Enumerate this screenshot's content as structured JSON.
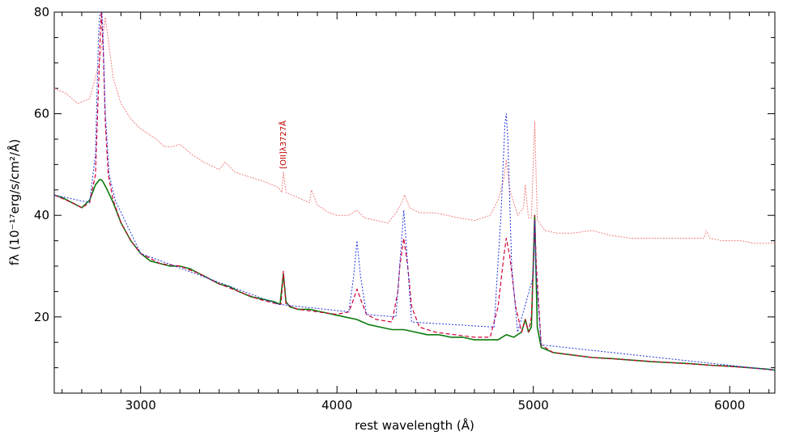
{
  "chart_data": {
    "type": "line",
    "xlabel": "rest wavelength (Å)",
    "ylabel": "fλ (10⁻¹⁷erg/s/cm²/Å)",
    "xlim": [
      2560,
      6230
    ],
    "ylim": [
      5,
      80
    ],
    "x_ticks": [
      3000,
      4000,
      5000,
      6000
    ],
    "y_ticks": [
      20,
      40,
      60,
      80
    ],
    "annotations": [
      {
        "text": "[OII]λ3727Å",
        "x": 3727,
        "y": 48.5
      }
    ],
    "grid": false,
    "colors": {
      "observed": "#0a7a0a",
      "model": "#d0003a",
      "components": "#2233dd",
      "comparison": "#f08080",
      "annotation": "#c00000"
    },
    "series": [
      {
        "key": "comparison",
        "x": [
          2560,
          2620,
          2680,
          2740,
          2790,
          2820,
          2860,
          2900,
          2950,
          3000,
          3080,
          3120,
          3160,
          3200,
          3260,
          3320,
          3400,
          3430,
          3480,
          3560,
          3640,
          3700,
          3720,
          3727,
          3740,
          3800,
          3860,
          3870,
          3900,
          3960,
          4000,
          4060,
          4100,
          4140,
          4200,
          4260,
          4300,
          4330,
          4345,
          4370,
          4420,
          4500,
          4560,
          4620,
          4700,
          4780,
          4820,
          4850,
          4862,
          4880,
          4920,
          4950,
          4959,
          4975,
          4990,
          5007,
          5020,
          5060,
          5120,
          5200,
          5300,
          5400,
          5500,
          5600,
          5700,
          5800,
          5870,
          5880,
          5900,
          5960,
          6000,
          6060,
          6120,
          6180,
          6230
        ],
        "y": [
          65,
          64,
          62,
          63,
          70,
          79,
          67,
          62,
          59,
          57,
          55,
          53.5,
          53.5,
          54,
          52,
          50.5,
          49,
          50.5,
          48.5,
          47.5,
          46.5,
          45.5,
          44.5,
          48.5,
          44.5,
          43.5,
          42.5,
          45,
          42,
          40.5,
          40,
          40,
          41,
          39.5,
          39,
          38.5,
          40.5,
          42.5,
          44,
          41.5,
          40.5,
          40.5,
          40,
          39.5,
          39,
          40,
          43,
          47,
          51,
          45,
          40,
          41.5,
          46,
          39.5,
          39.5,
          58.5,
          39,
          37,
          36.5,
          36.5,
          37,
          36,
          35.5,
          35.5,
          35.5,
          35.5,
          35.5,
          37,
          35.5,
          35,
          35,
          35,
          34.5,
          34.5,
          34.5
        ]
      },
      {
        "key": "observed",
        "x": [
          2560,
          2600,
          2650,
          2700,
          2740,
          2770,
          2790,
          2800,
          2810,
          2830,
          2860,
          2900,
          2950,
          3000,
          3050,
          3100,
          3150,
          3200,
          3250,
          3300,
          3350,
          3400,
          3450,
          3500,
          3560,
          3620,
          3680,
          3710,
          3727,
          3740,
          3760,
          3800,
          3860,
          3920,
          3980,
          4040,
          4100,
          4160,
          4220,
          4280,
          4340,
          4400,
          4460,
          4520,
          4580,
          4640,
          4700,
          4760,
          4820,
          4862,
          4900,
          4940,
          4959,
          4975,
          4990,
          5007,
          5020,
          5040,
          5100,
          5200,
          5300,
          5400,
          5500,
          5600,
          5700,
          5800,
          5900,
          6000,
          6100,
          6200,
          6230
        ],
        "y": [
          44,
          43.5,
          42.5,
          41.5,
          43,
          46,
          47,
          47,
          46.5,
          45,
          42.5,
          38.5,
          35,
          32.5,
          31,
          30.5,
          30,
          30,
          29.5,
          28.5,
          27.5,
          26.5,
          26,
          25,
          24,
          23.5,
          23,
          22.5,
          28.5,
          23,
          22,
          21.5,
          21.5,
          21,
          20.5,
          20,
          19.5,
          18.5,
          18,
          17.5,
          17.5,
          17,
          16.5,
          16.5,
          16,
          16,
          15.5,
          15.5,
          15.5,
          16.5,
          16,
          17,
          19.5,
          17,
          18,
          40,
          18,
          14,
          13,
          12.5,
          12,
          11.8,
          11.5,
          11.2,
          11,
          10.8,
          10.5,
          10.3,
          10,
          9.7,
          9.5
        ]
      },
      {
        "key": "model",
        "x": [
          2560,
          2650,
          2700,
          2740,
          2770,
          2785,
          2795,
          2800,
          2810,
          2820,
          2835,
          2860,
          2900,
          2950,
          3000,
          3100,
          3200,
          3300,
          3400,
          3500,
          3600,
          3700,
          3715,
          3727,
          3740,
          3800,
          3900,
          4000,
          4060,
          4080,
          4102,
          4125,
          4150,
          4200,
          4280,
          4310,
          4320,
          4340,
          4360,
          4380,
          4420,
          4500,
          4600,
          4700,
          4780,
          4820,
          4850,
          4862,
          4880,
          4910,
          4940,
          4959,
          4975,
          4990,
          5000,
          5007,
          5015,
          5040,
          5100,
          5300,
          5500,
          5700,
          5900,
          6100,
          6230
        ],
        "y": [
          44,
          42.5,
          41.5,
          42.5,
          48,
          65,
          76,
          80,
          72,
          58,
          48,
          43,
          38.5,
          35,
          32.5,
          30.5,
          30,
          28.5,
          26.5,
          25,
          23.5,
          22.5,
          22.5,
          29,
          22.5,
          21.5,
          21,
          20.5,
          21,
          23,
          25.5,
          23,
          20.5,
          19.5,
          19,
          25,
          30,
          35.5,
          30,
          22,
          18,
          17,
          16.5,
          16,
          16,
          22,
          32,
          35.5,
          32,
          22,
          17,
          19.5,
          17,
          20,
          30,
          40,
          30,
          14.5,
          13,
          12,
          11.5,
          11,
          10.5,
          10,
          9.5
        ]
      },
      {
        "key": "components",
        "x": [
          2560,
          2740,
          2770,
          2785,
          2795,
          2800,
          2808,
          2820,
          2840,
          2870,
          3000,
          3700,
          4060,
          4085,
          4102,
          4120,
          4150,
          4300,
          4325,
          4340,
          4355,
          4380,
          4800,
          4835,
          4855,
          4862,
          4870,
          4890,
          4920,
          5000,
          5007,
          5014,
          5040,
          6230
        ],
        "y": [
          44,
          42.5,
          52,
          75,
          82,
          82,
          76,
          60,
          48,
          43,
          32.5,
          22.5,
          21,
          28,
          35,
          28,
          20.5,
          20,
          33,
          41,
          33,
          19,
          18,
          40,
          58,
          60,
          55,
          30,
          17,
          28,
          39,
          28,
          14.5,
          9.5
        ]
      }
    ]
  }
}
